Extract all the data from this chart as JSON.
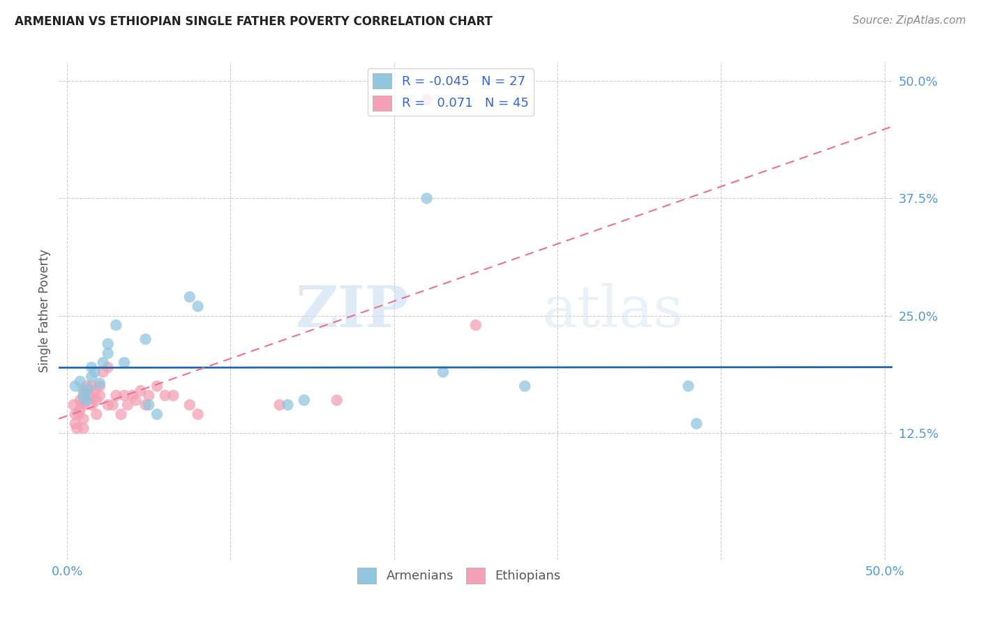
{
  "title": "ARMENIAN VS ETHIOPIAN SINGLE FATHER POVERTY CORRELATION CHART",
  "source": "Source: ZipAtlas.com",
  "ylabel": "Single Father Poverty",
  "xlim": [
    -0.005,
    0.505
  ],
  "ylim": [
    -0.01,
    0.52
  ],
  "yticks": [
    0.125,
    0.25,
    0.375,
    0.5
  ],
  "ytick_labels": [
    "12.5%",
    "25.0%",
    "37.5%",
    "50.0%"
  ],
  "xticks": [
    0.0,
    0.1,
    0.2,
    0.3,
    0.4,
    0.5
  ],
  "xtick_labels": [
    "0.0%",
    "",
    "",
    "",
    "",
    "50.0%"
  ],
  "watermark_zip": "ZIP",
  "watermark_atlas": "atlas",
  "legend_armenian_R": "-0.045",
  "legend_armenian_N": "27",
  "legend_ethiopian_R": "0.071",
  "legend_ethiopian_N": "45",
  "armenian_color": "#92c5de",
  "ethiopian_color": "#f4a0b5",
  "armenian_line_color": "#2166ac",
  "ethiopian_line_color": "#e87090",
  "grid_color": "#cccccc",
  "title_color": "#222222",
  "tick_color": "#5599cc",
  "armenians_x": [
    0.005,
    0.008,
    0.01,
    0.01,
    0.012,
    0.013,
    0.015,
    0.015,
    0.017,
    0.02,
    0.022,
    0.025,
    0.025,
    0.03,
    0.035,
    0.048,
    0.05,
    0.055,
    0.075,
    0.08,
    0.135,
    0.145,
    0.22,
    0.23,
    0.28,
    0.38,
    0.385
  ],
  "armenians_y": [
    0.175,
    0.18,
    0.17,
    0.163,
    0.16,
    0.172,
    0.195,
    0.185,
    0.19,
    0.178,
    0.2,
    0.21,
    0.22,
    0.24,
    0.2,
    0.225,
    0.155,
    0.145,
    0.27,
    0.26,
    0.155,
    0.16,
    0.375,
    0.19,
    0.175,
    0.175,
    0.135
  ],
  "ethiopians_x": [
    0.004,
    0.005,
    0.005,
    0.006,
    0.007,
    0.008,
    0.008,
    0.009,
    0.01,
    0.01,
    0.01,
    0.01,
    0.011,
    0.012,
    0.013,
    0.015,
    0.015,
    0.016,
    0.017,
    0.018,
    0.018,
    0.02,
    0.02,
    0.022,
    0.025,
    0.025,
    0.028,
    0.03,
    0.033,
    0.035,
    0.037,
    0.04,
    0.042,
    0.045,
    0.048,
    0.05,
    0.055,
    0.06,
    0.065,
    0.075,
    0.08,
    0.13,
    0.165,
    0.22,
    0.25
  ],
  "ethiopians_y": [
    0.155,
    0.145,
    0.135,
    0.13,
    0.145,
    0.15,
    0.16,
    0.155,
    0.165,
    0.158,
    0.14,
    0.13,
    0.17,
    0.175,
    0.165,
    0.175,
    0.155,
    0.162,
    0.17,
    0.16,
    0.145,
    0.175,
    0.165,
    0.19,
    0.195,
    0.155,
    0.155,
    0.165,
    0.145,
    0.165,
    0.155,
    0.165,
    0.16,
    0.17,
    0.155,
    0.165,
    0.175,
    0.165,
    0.165,
    0.155,
    0.145,
    0.155,
    0.16,
    0.48,
    0.24
  ]
}
